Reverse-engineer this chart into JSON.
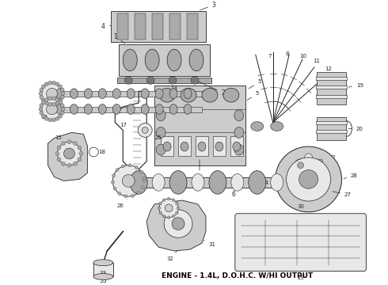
{
  "caption": "ENGINE - 1.4L, D.O.H.C. W/HI OUTPUT",
  "caption_fontsize": 6.5,
  "bg_color": "#ffffff",
  "fig_width": 4.9,
  "fig_height": 3.6,
  "dpi": 100,
  "line_color": "#222222",
  "fill_light": "#e8e8e8",
  "fill_mid": "#cccccc",
  "fill_dark": "#aaaaaa"
}
